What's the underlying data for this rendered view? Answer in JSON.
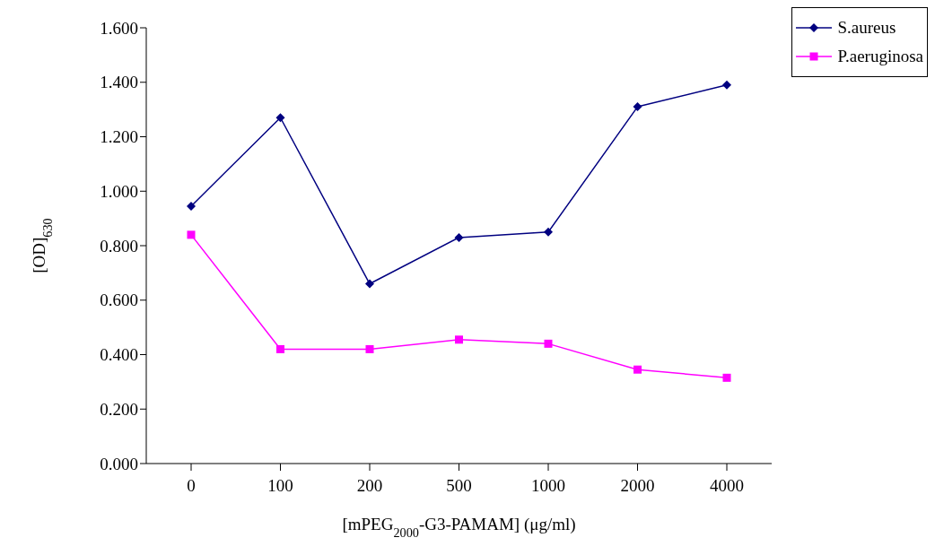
{
  "chart_data": {
    "type": "line",
    "xlabel": "[mPEG$_{2000}$-G3-PAMAM] (μg/ml)",
    "ylabel": "[OD]$_{630}$",
    "categories": [
      "0",
      "100",
      "200",
      "500",
      "1000",
      "2000",
      "4000"
    ],
    "series": [
      {
        "name": "S.aureus",
        "color": "#000080",
        "marker": "diamond",
        "values": [
          0.945,
          1.27,
          0.66,
          0.83,
          0.85,
          1.31,
          1.39
        ]
      },
      {
        "name": "P.aeruginosa",
        "color": "#ff00ff",
        "marker": "square",
        "values": [
          0.84,
          0.42,
          0.42,
          0.455,
          0.44,
          0.345,
          0.315
        ]
      }
    ],
    "ylim": [
      0,
      1.6
    ],
    "yticks": [
      {
        "value": 0,
        "label": "0.000"
      },
      {
        "value": 0.2,
        "label": "0.200"
      },
      {
        "value": 0.4,
        "label": "0.400"
      },
      {
        "value": 0.6,
        "label": "0.600"
      },
      {
        "value": 0.8,
        "label": "0.800"
      },
      {
        "value": 1,
        "label": "1.000"
      },
      {
        "value": 1.2,
        "label": "1.200"
      },
      {
        "value": 1.4,
        "label": "1.400"
      },
      {
        "value": 1.6,
        "label": "1.600"
      }
    ],
    "grid": false,
    "legend": "top right",
    "line_style": "solid"
  }
}
